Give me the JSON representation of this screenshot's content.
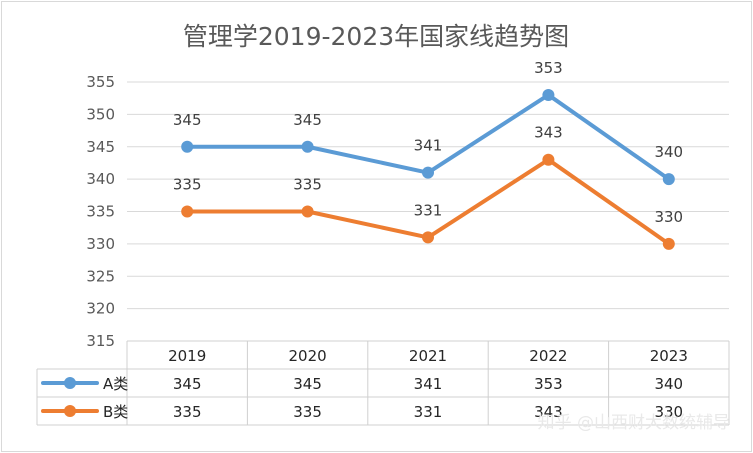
{
  "chart_data": {
    "type": "line",
    "title": "管理学2019-2023年国家线趋势图",
    "categories": [
      "2019",
      "2020",
      "2021",
      "2022",
      "2023"
    ],
    "series": [
      {
        "name": "A类",
        "values": [
          345,
          345,
          341,
          353,
          340
        ],
        "color": "#5b9bd5"
      },
      {
        "name": "B类",
        "values": [
          335,
          335,
          331,
          343,
          330
        ],
        "color": "#ed7d31"
      }
    ],
    "ylim": [
      315,
      355
    ],
    "yticks": [
      315,
      320,
      325,
      330,
      335,
      340,
      345,
      350,
      355
    ],
    "grid": true,
    "legend": "data-table-left",
    "data_labels": true
  },
  "watermark": "知乎 @山西财大数统辅导"
}
